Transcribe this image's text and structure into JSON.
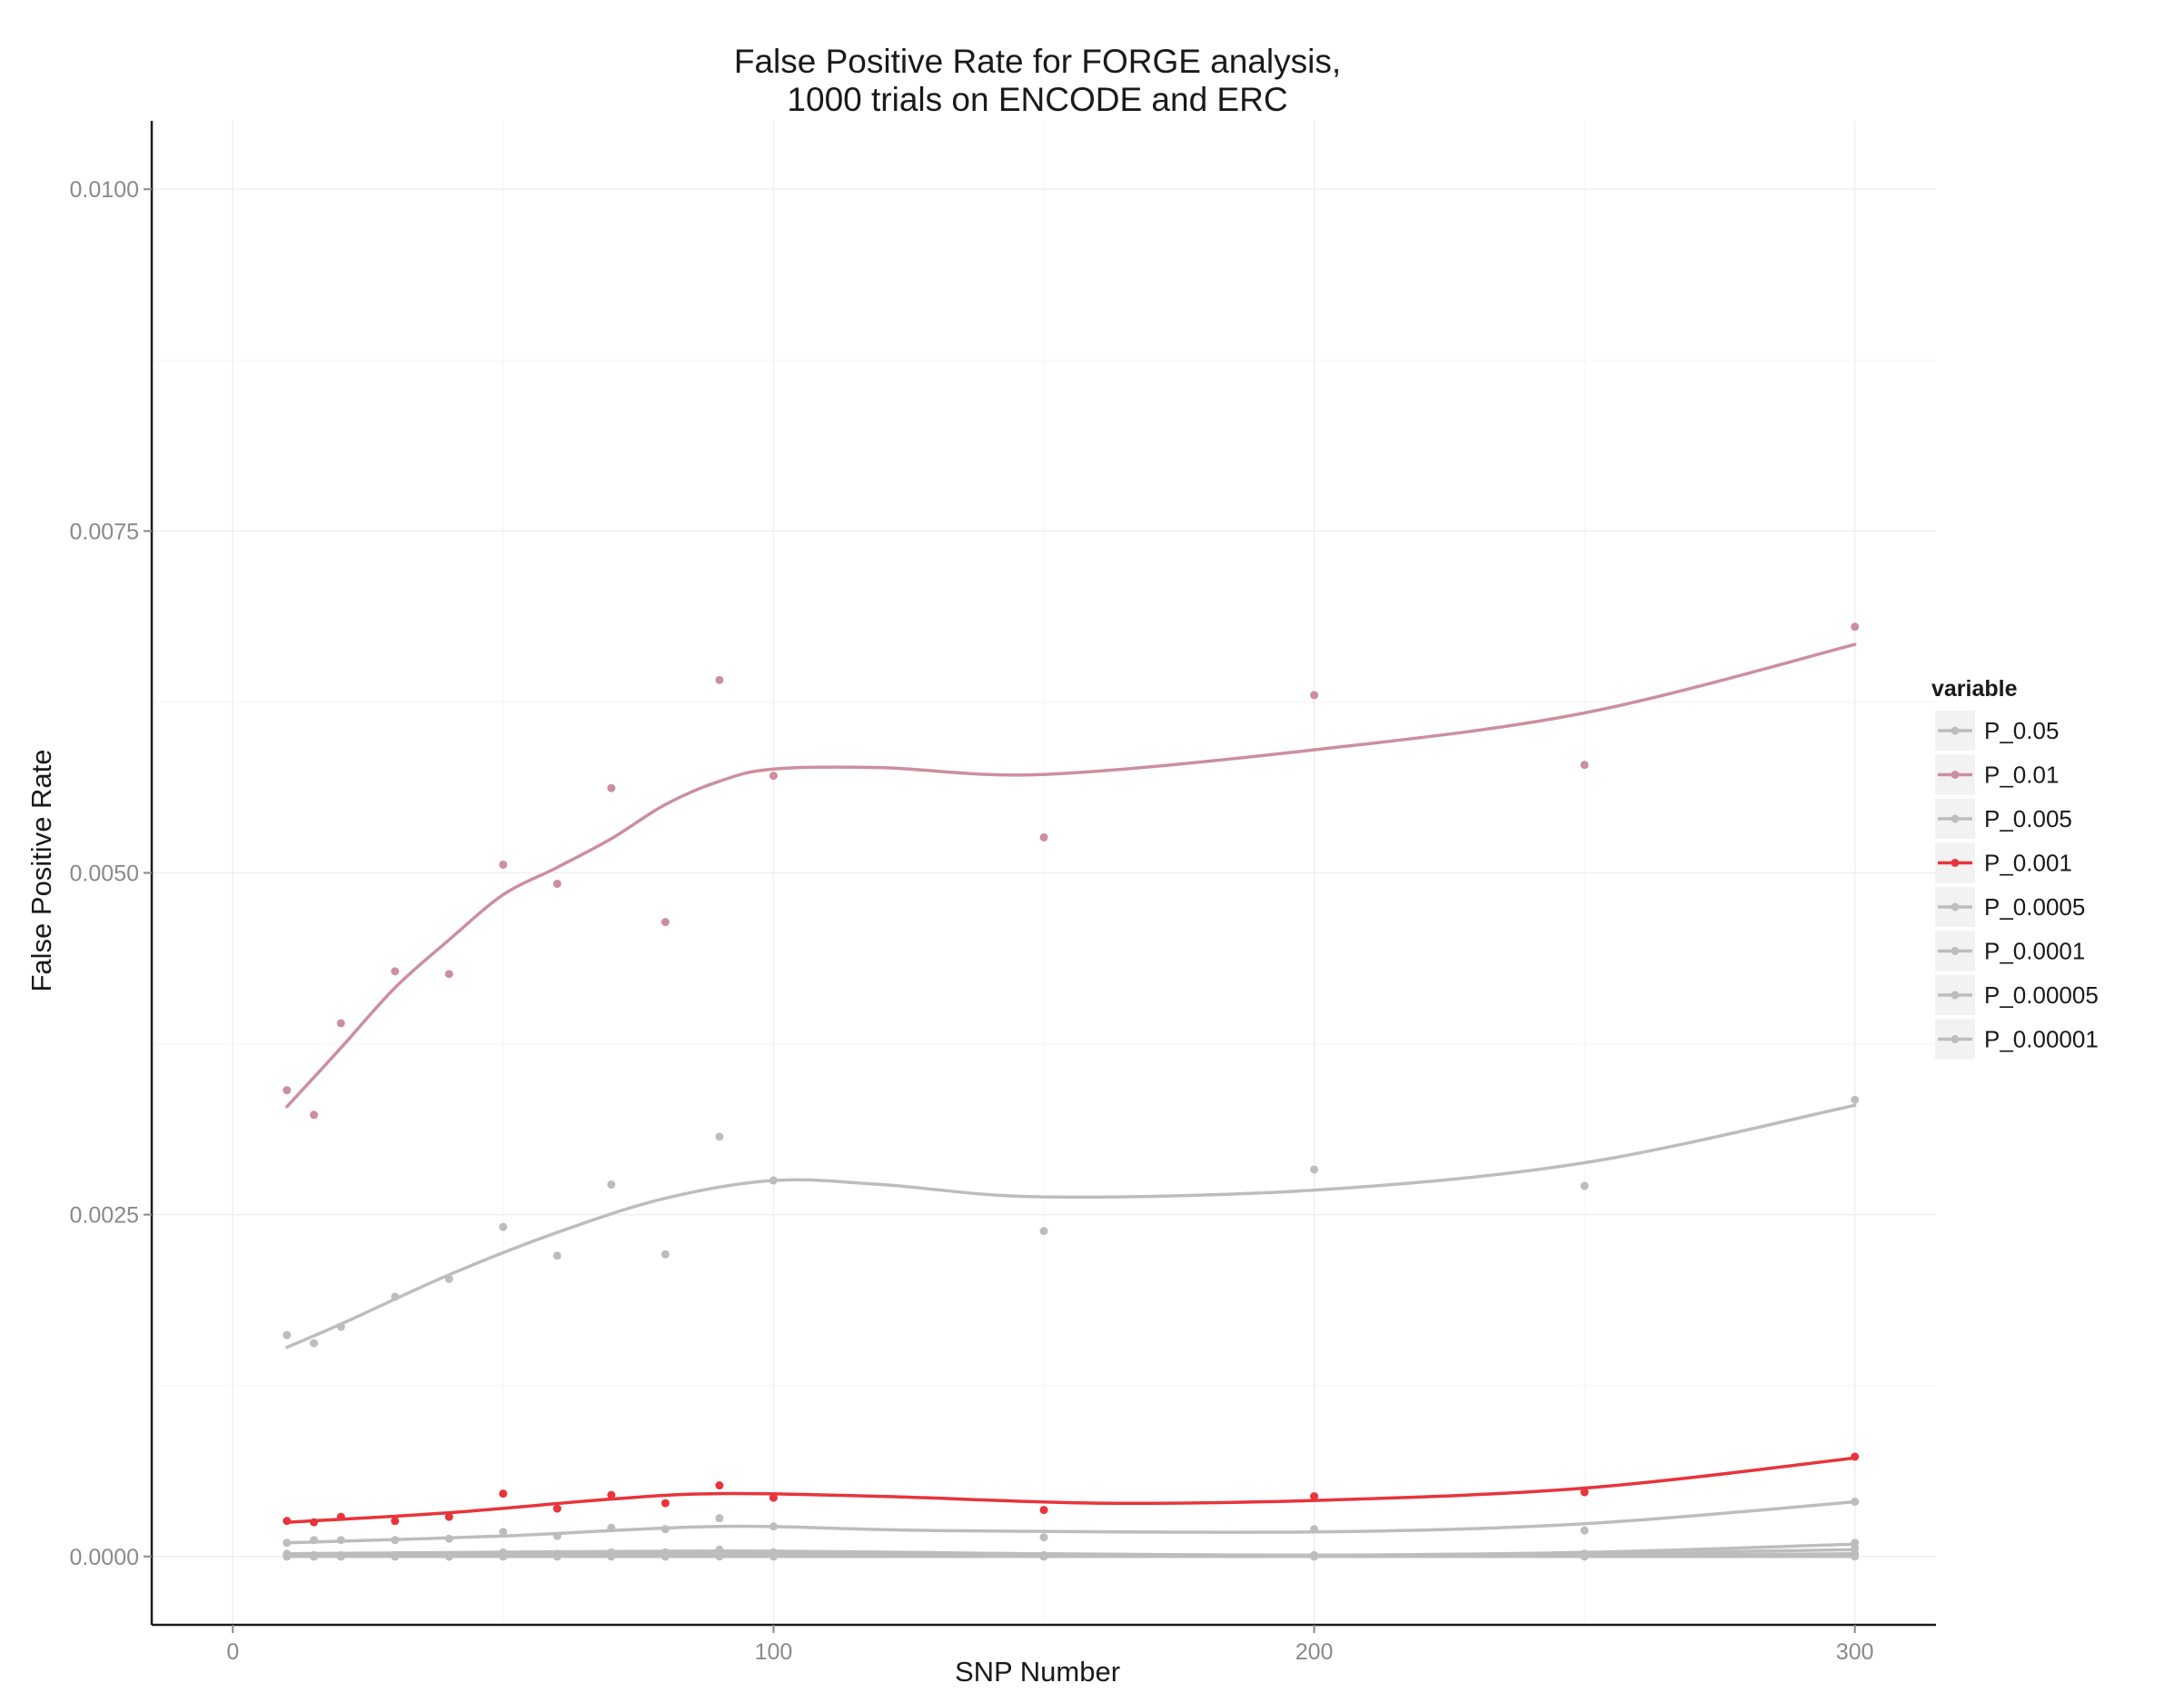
{
  "chart_data": {
    "type": "scatter",
    "title": "False Positive Rate for FORGE analysis,",
    "subtitle": "1000 trials on ENCODE and ERC",
    "xlabel": "SNP Number",
    "ylabel": "False Positive Rate",
    "xlim": [
      -15,
      315
    ],
    "ylim": [
      -0.0005,
      0.0105
    ],
    "x_ticks": [
      0,
      100,
      200,
      300
    ],
    "x_tick_labels": [
      "0",
      "100",
      "200",
      "300"
    ],
    "y_ticks": [
      0,
      0.0025,
      0.005,
      0.0075,
      0.01
    ],
    "y_tick_labels": [
      "0.0000",
      "0.0025",
      "0.0050",
      "0.0075",
      "0.0100"
    ],
    "grid": true,
    "legend": {
      "title": "variable",
      "position": "right"
    },
    "x": [
      10,
      15,
      20,
      30,
      40,
      50,
      60,
      70,
      80,
      90,
      100,
      150,
      200,
      250,
      300
    ],
    "series": [
      {
        "name": "P_0.05",
        "color": "#bdbdbd",
        "values": [
          0.00162,
          0.00156,
          0.00168,
          0.0019,
          0.00203,
          0.00241,
          0.0022,
          0.00272,
          0.00221,
          0.00307,
          0.00275,
          0.00238,
          0.00283,
          0.00271,
          0.00334
        ],
        "smooth": [
          [
            10,
            0.00153
          ],
          [
            20,
            0.0017
          ],
          [
            40,
            0.00206
          ],
          [
            60,
            0.00237
          ],
          [
            80,
            0.00262
          ],
          [
            100,
            0.00275
          ],
          [
            120,
            0.00272
          ],
          [
            150,
            0.00263
          ],
          [
            200,
            0.00268
          ],
          [
            250,
            0.00288
          ],
          [
            300,
            0.0033
          ]
        ]
      },
      {
        "name": "P_0.01",
        "color": "#cc8f9f",
        "values": [
          0.00341,
          0.00323,
          0.0039,
          0.00428,
          0.00426,
          0.00506,
          0.00492,
          0.00562,
          0.00464,
          0.00641,
          0.00571,
          0.00526,
          0.0063,
          0.00579,
          0.0068
        ],
        "smooth": [
          [
            10,
            0.00329
          ],
          [
            20,
            0.00372
          ],
          [
            30,
            0.00416
          ],
          [
            40,
            0.00451
          ],
          [
            50,
            0.00484
          ],
          [
            60,
            0.00504
          ],
          [
            70,
            0.00525
          ],
          [
            80,
            0.0055
          ],
          [
            90,
            0.00567
          ],
          [
            100,
            0.00576
          ],
          [
            120,
            0.00577
          ],
          [
            150,
            0.00572
          ],
          [
            200,
            0.0059
          ],
          [
            250,
            0.00617
          ],
          [
            300,
            0.00667
          ]
        ]
      },
      {
        "name": "P_0.005",
        "color": "#bdbdbd",
        "values": [
          0.0001,
          0.00012,
          0.00012,
          0.00012,
          0.00013,
          0.00018,
          0.00015,
          0.00021,
          0.0002,
          0.00028,
          0.00022,
          0.00014,
          0.0002,
          0.00019,
          0.0004
        ],
        "smooth": [
          [
            10,
            0.0001
          ],
          [
            50,
            0.00015
          ],
          [
            90,
            0.00022
          ],
          [
            130,
            0.00019
          ],
          [
            200,
            0.00018
          ],
          [
            250,
            0.00024
          ],
          [
            300,
            0.0004
          ]
        ]
      },
      {
        "name": "P_0.001",
        "color": "#e8343b",
        "values": [
          0.00026,
          0.00025,
          0.00029,
          0.00026,
          0.00029,
          0.00046,
          0.00035,
          0.00045,
          0.00039,
          0.00052,
          0.00043,
          0.00034,
          0.00044,
          0.00047,
          0.00073
        ],
        "smooth": [
          [
            10,
            0.00025
          ],
          [
            40,
            0.00032
          ],
          [
            70,
            0.00042
          ],
          [
            90,
            0.00046
          ],
          [
            120,
            0.00044
          ],
          [
            160,
            0.00039
          ],
          [
            200,
            0.00041
          ],
          [
            250,
            0.0005
          ],
          [
            300,
            0.00072
          ]
        ]
      },
      {
        "name": "P_0.0005",
        "color": "#bdbdbd",
        "values": [
          2e-05,
          1e-05,
          1e-05,
          1e-05,
          1e-05,
          3e-05,
          2e-05,
          3e-05,
          3e-05,
          5e-05,
          3e-05,
          1e-05,
          1e-05,
          2e-05,
          0.0001
        ],
        "smooth": [
          [
            10,
            2e-05
          ],
          [
            90,
            4e-05
          ],
          [
            150,
            2e-05
          ],
          [
            200,
            1e-05
          ],
          [
            250,
            3e-05
          ],
          [
            300,
            9e-05
          ]
        ]
      },
      {
        "name": "P_0.0001",
        "color": "#bdbdbd",
        "values": [
          1e-05,
          1e-05,
          0.0,
          0.0,
          0.0,
          1e-05,
          1e-05,
          2e-05,
          1e-05,
          2e-05,
          1e-05,
          0.0,
          0.0,
          1e-05,
          6e-05
        ],
        "smooth": [
          [
            10,
            1e-05
          ],
          [
            90,
            2e-05
          ],
          [
            200,
            0.0
          ],
          [
            250,
            2e-05
          ],
          [
            300,
            5e-05
          ]
        ]
      },
      {
        "name": "P_0.00005",
        "color": "#bdbdbd",
        "values": [
          0.0,
          0.0,
          0.0,
          0.0,
          0.0,
          0.0,
          0.0,
          1e-05,
          0.0,
          1e-05,
          0.0,
          0.0,
          0.0,
          0.0,
          2e-05
        ],
        "smooth": [
          [
            10,
            0.0
          ],
          [
            100,
            1e-05
          ],
          [
            200,
            0.0
          ],
          [
            300,
            2e-05
          ]
        ]
      },
      {
        "name": "P_0.00001",
        "color": "#bdbdbd",
        "values": [
          0.0,
          0.0,
          0.0,
          0.0,
          0.0,
          0.0,
          0.0,
          0.0,
          0.0,
          0.0,
          0.0,
          0.0,
          0.0,
          0.0,
          0.0
        ],
        "smooth": [
          [
            10,
            0.0
          ],
          [
            300,
            0.0
          ]
        ]
      }
    ]
  }
}
